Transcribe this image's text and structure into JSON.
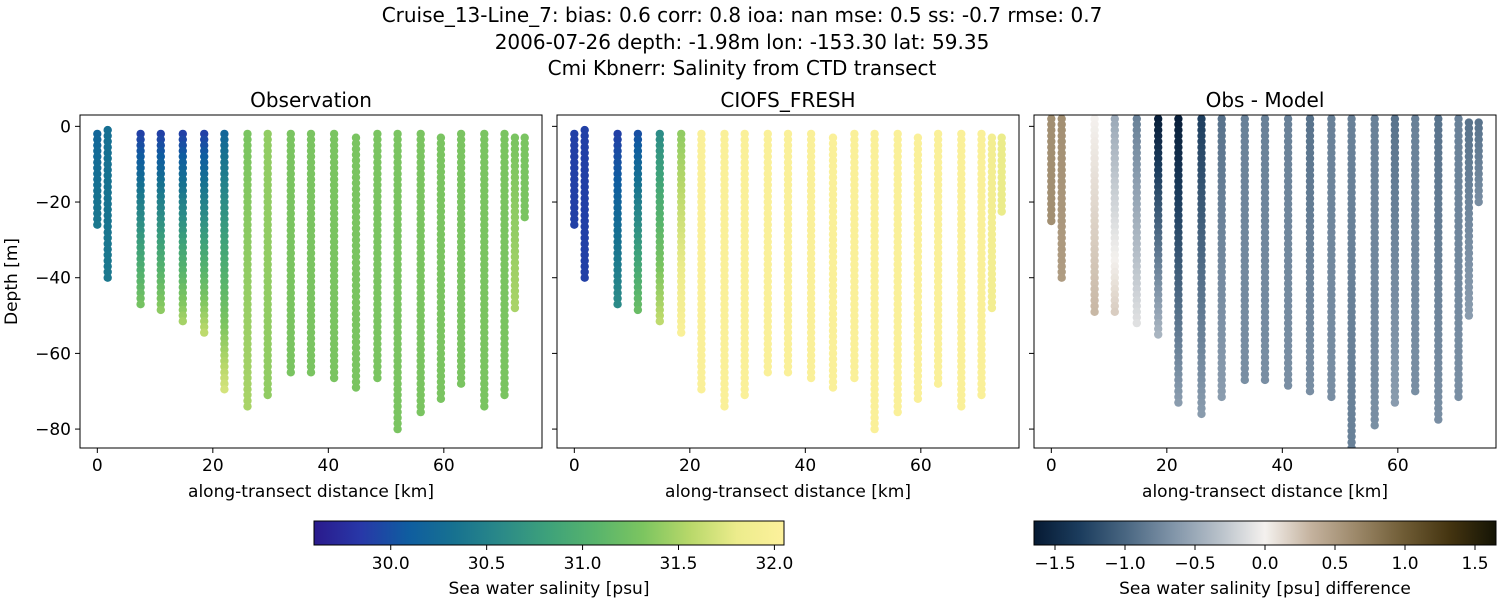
{
  "title_lines": [
    "Cruise_13-Line_7: bias: 0.6  corr: 0.8  ioa: nan  mse: 0.5  ss: -0.7  rmse: 0.7",
    "2006-07-26 depth: -1.98m lon: -153.30 lat: 59.35",
    "Cmi Kbnerr: Salinity from CTD transect"
  ],
  "chart_data": [
    {
      "type": "scatter",
      "title": "Observation",
      "xlabel": "along-transect distance [km]",
      "ylabel": "Depth [m]",
      "xlim": [
        -3,
        77
      ],
      "ylim": [
        -85,
        3
      ],
      "xticks": [
        0,
        20,
        40,
        60
      ],
      "yticks": [
        0,
        -20,
        -40,
        -60,
        -80
      ],
      "colormap": "haline",
      "casts": [
        {
          "x": 0.0,
          "depth_min": -27,
          "top": -2,
          "surface": 30.2,
          "bottom": 30.4
        },
        {
          "x": 1.8,
          "depth_min": -41,
          "top": -1,
          "surface": 30.3,
          "bottom": 30.4
        },
        {
          "x": 7.5,
          "depth_min": -48,
          "top": -2,
          "surface": 29.9,
          "bottom": 31.3
        },
        {
          "x": 11.0,
          "depth_min": -49,
          "top": -2,
          "surface": 29.9,
          "bottom": 31.4
        },
        {
          "x": 14.8,
          "depth_min": -52,
          "top": -2,
          "surface": 29.9,
          "bottom": 31.5
        },
        {
          "x": 18.5,
          "depth_min": -55,
          "top": -2,
          "surface": 29.9,
          "bottom": 31.6
        },
        {
          "x": 22.0,
          "depth_min": -70,
          "top": -2,
          "surface": 30.2,
          "bottom": 31.7
        },
        {
          "x": 26.0,
          "depth_min": -74,
          "top": -2,
          "surface": 31.3,
          "bottom": 31.5
        },
        {
          "x": 29.5,
          "depth_min": -71,
          "top": -2,
          "surface": 31.4,
          "bottom": 31.4
        },
        {
          "x": 33.5,
          "depth_min": -65,
          "top": -2,
          "surface": 31.3,
          "bottom": 31.3
        },
        {
          "x": 37.0,
          "depth_min": -66,
          "top": -2,
          "surface": 31.3,
          "bottom": 31.3
        },
        {
          "x": 41.0,
          "depth_min": -67,
          "top": -2,
          "surface": 31.3,
          "bottom": 31.3
        },
        {
          "x": 44.8,
          "depth_min": -69,
          "top": -3,
          "surface": 31.3,
          "bottom": 31.3
        },
        {
          "x": 48.5,
          "depth_min": -67,
          "top": -2,
          "surface": 31.3,
          "bottom": 31.3
        },
        {
          "x": 52.0,
          "depth_min": -81,
          "top": -2,
          "surface": 31.3,
          "bottom": 31.3
        },
        {
          "x": 56.0,
          "depth_min": -76,
          "top": -2,
          "surface": 31.3,
          "bottom": 31.3
        },
        {
          "x": 59.5,
          "depth_min": -72,
          "top": -3,
          "surface": 31.3,
          "bottom": 31.3
        },
        {
          "x": 63.0,
          "depth_min": -68,
          "top": -2,
          "surface": 31.3,
          "bottom": 31.3
        },
        {
          "x": 67.0,
          "depth_min": -75,
          "top": -2,
          "surface": 31.3,
          "bottom": 31.3
        },
        {
          "x": 70.5,
          "depth_min": -71,
          "top": -2,
          "surface": 31.3,
          "bottom": 31.3
        },
        {
          "x": 72.3,
          "depth_min": -48,
          "top": -3,
          "surface": 31.3,
          "bottom": 31.5
        },
        {
          "x": 74.0,
          "depth_min": -25,
          "top": -3,
          "surface": 31.3,
          "bottom": 31.3
        }
      ]
    },
    {
      "type": "scatter",
      "title": "CIOFS_FRESH",
      "xlabel": "along-transect distance [km]",
      "xlim": [
        -3,
        77
      ],
      "ylim": [
        -85,
        3
      ],
      "xticks": [
        0,
        20,
        40,
        60
      ],
      "colormap": "haline",
      "casts": [
        {
          "x": 0.0,
          "depth_min": -27,
          "top": -2,
          "surface": 29.9,
          "bottom": 29.9
        },
        {
          "x": 1.8,
          "depth_min": -41,
          "top": -1,
          "surface": 29.9,
          "bottom": 29.9
        },
        {
          "x": 7.5,
          "depth_min": -48,
          "top": -2,
          "surface": 29.9,
          "bottom": 30.6
        },
        {
          "x": 11.0,
          "depth_min": -49,
          "top": -2,
          "surface": 30.0,
          "bottom": 31.2
        },
        {
          "x": 14.8,
          "depth_min": -52,
          "top": -2,
          "surface": 30.6,
          "bottom": 31.6
        },
        {
          "x": 18.5,
          "depth_min": -55,
          "top": -2,
          "surface": 31.4,
          "bottom": 32.0
        },
        {
          "x": 22.0,
          "depth_min": -70,
          "top": -2,
          "surface": 32.0,
          "bottom": 32.0
        },
        {
          "x": 26.0,
          "depth_min": -74,
          "top": -2,
          "surface": 32.0,
          "bottom": 32.0
        },
        {
          "x": 29.5,
          "depth_min": -71,
          "top": -2,
          "surface": 32.0,
          "bottom": 32.0
        },
        {
          "x": 33.5,
          "depth_min": -65,
          "top": -2,
          "surface": 32.0,
          "bottom": 32.0
        },
        {
          "x": 37.0,
          "depth_min": -66,
          "top": -2,
          "surface": 32.0,
          "bottom": 32.0
        },
        {
          "x": 41.0,
          "depth_min": -67,
          "top": -2,
          "surface": 32.0,
          "bottom": 32.0
        },
        {
          "x": 44.8,
          "depth_min": -69,
          "top": -3,
          "surface": 32.0,
          "bottom": 32.0
        },
        {
          "x": 48.5,
          "depth_min": -67,
          "top": -2,
          "surface": 32.0,
          "bottom": 32.0
        },
        {
          "x": 52.0,
          "depth_min": -81,
          "top": -2,
          "surface": 32.0,
          "bottom": 32.0
        },
        {
          "x": 56.0,
          "depth_min": -76,
          "top": -2,
          "surface": 32.0,
          "bottom": 32.0
        },
        {
          "x": 59.5,
          "depth_min": -72,
          "top": -3,
          "surface": 32.0,
          "bottom": 32.0
        },
        {
          "x": 63.0,
          "depth_min": -68,
          "top": -2,
          "surface": 32.0,
          "bottom": 32.0
        },
        {
          "x": 67.0,
          "depth_min": -75,
          "top": -2,
          "surface": 32.0,
          "bottom": 32.0
        },
        {
          "x": 70.5,
          "depth_min": -71,
          "top": -2,
          "surface": 32.0,
          "bottom": 32.0
        },
        {
          "x": 72.3,
          "depth_min": -48,
          "top": -3,
          "surface": 31.9,
          "bottom": 31.9
        },
        {
          "x": 74.0,
          "depth_min": -23,
          "top": -3,
          "surface": 31.8,
          "bottom": 31.8
        }
      ]
    },
    {
      "type": "scatter",
      "title": "Obs - Model",
      "xlabel": "along-transect distance [km]",
      "xlim": [
        -3,
        77
      ],
      "ylim": [
        -85,
        3
      ],
      "xticks": [
        0,
        20,
        40,
        60
      ],
      "colormap": "diff",
      "casts": [
        {
          "x": 0.0,
          "depth_min": -25,
          "top": 2,
          "surface": 0.6,
          "bottom": 0.6
        },
        {
          "x": 1.8,
          "depth_min": -41,
          "top": 2,
          "surface": 0.6,
          "bottom": 0.5
        },
        {
          "x": 7.5,
          "depth_min": -49,
          "top": 2,
          "surface": 0.0,
          "bottom": 0.3
        },
        {
          "x": 11.0,
          "depth_min": -50,
          "top": 2,
          "surface": -0.5,
          "bottom": 0.2
        },
        {
          "x": 14.8,
          "depth_min": -53,
          "top": 2,
          "surface": -0.8,
          "bottom": -0.1
        },
        {
          "x": 18.5,
          "depth_min": -56,
          "top": 2,
          "surface": -1.6,
          "bottom": -0.4
        },
        {
          "x": 22.0,
          "depth_min": -73,
          "top": 2,
          "surface": -1.6,
          "bottom": -0.6
        },
        {
          "x": 26.0,
          "depth_min": -77,
          "top": 2,
          "surface": -1.3,
          "bottom": -0.6
        },
        {
          "x": 29.5,
          "depth_min": -72,
          "top": 2,
          "surface": -0.9,
          "bottom": -0.6
        },
        {
          "x": 33.5,
          "depth_min": -67,
          "top": 2,
          "surface": -0.8,
          "bottom": -0.7
        },
        {
          "x": 37.0,
          "depth_min": -68,
          "top": 2,
          "surface": -0.8,
          "bottom": -0.7
        },
        {
          "x": 41.0,
          "depth_min": -69,
          "top": 2,
          "surface": -0.8,
          "bottom": -0.7
        },
        {
          "x": 44.8,
          "depth_min": -71,
          "top": 2,
          "surface": -0.9,
          "bottom": -0.7
        },
        {
          "x": 48.5,
          "depth_min": -72,
          "top": 2,
          "surface": -0.8,
          "bottom": -0.7
        },
        {
          "x": 52.0,
          "depth_min": -85,
          "top": 2,
          "surface": -0.8,
          "bottom": -0.8
        },
        {
          "x": 56.0,
          "depth_min": -79,
          "top": 2,
          "surface": -0.8,
          "bottom": -0.7
        },
        {
          "x": 59.5,
          "depth_min": -74,
          "top": 2,
          "surface": -0.9,
          "bottom": -0.6
        },
        {
          "x": 63.0,
          "depth_min": -70,
          "top": 2,
          "surface": -0.8,
          "bottom": -0.7
        },
        {
          "x": 67.0,
          "depth_min": -78,
          "top": 2,
          "surface": -0.9,
          "bottom": -0.7
        },
        {
          "x": 70.5,
          "depth_min": -72,
          "top": 2,
          "surface": -0.8,
          "bottom": -0.7
        },
        {
          "x": 72.3,
          "depth_min": -50,
          "top": 1,
          "surface": -0.9,
          "bottom": -0.6
        },
        {
          "x": 74.0,
          "depth_min": -21,
          "top": 1,
          "surface": -0.9,
          "bottom": -0.7
        }
      ]
    }
  ],
  "colorbars": [
    {
      "label": "Sea water salinity [psu]",
      "range": [
        29.6,
        32.05
      ],
      "ticks": [
        30.0,
        30.5,
        31.0,
        31.5,
        32.0
      ],
      "tick_labels": [
        "30.0",
        "30.5",
        "31.0",
        "31.5",
        "32.0"
      ],
      "colormap": "haline"
    },
    {
      "label": "Sea water salinity [psu] difference",
      "range": [
        -1.65,
        1.65
      ],
      "ticks": [
        -1.5,
        -1.0,
        -0.5,
        0.0,
        0.5,
        1.0,
        1.5
      ],
      "tick_labels": [
        "−1.5",
        "−1.0",
        "−0.5",
        "0.0",
        "0.5",
        "1.0",
        "1.5"
      ],
      "colormap": "diff"
    }
  ],
  "y_tick_labels": [
    "0",
    "−20",
    "−40",
    "−60",
    "−80"
  ],
  "colors": {
    "haline": [
      "#2a1a8c",
      "#2838a8",
      "#0f5da0",
      "#177290",
      "#2b8a88",
      "#3ea27a",
      "#58b46c",
      "#7cc560",
      "#b8d86a",
      "#ecec8c",
      "#fdf19c"
    ],
    "diff": [
      "#061a33",
      "#1c3d5e",
      "#4a6782",
      "#8094a8",
      "#b7c0c9",
      "#f4f1ee",
      "#c4b29e",
      "#9b8768",
      "#6f5c35",
      "#443410",
      "#141405"
    ]
  }
}
